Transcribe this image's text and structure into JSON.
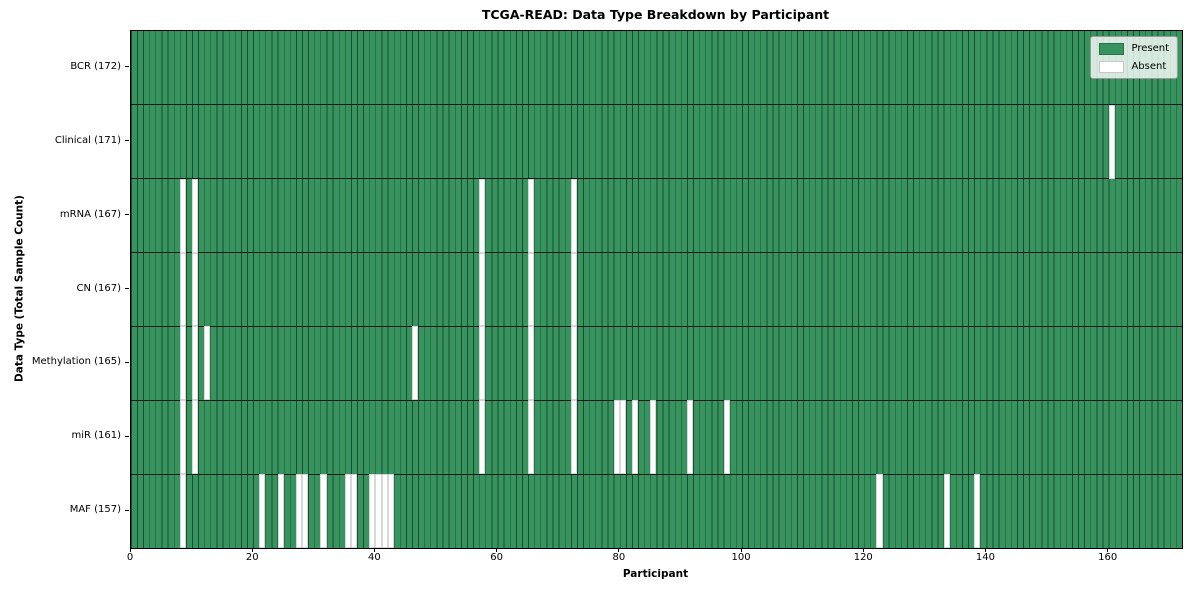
{
  "chart_data": {
    "type": "heatmap",
    "title": "TCGA-READ: Data Type Breakdown by Participant",
    "xlabel": "Participant",
    "ylabel": "Data Type (Total Sample Count)",
    "x_ticks": [
      0,
      20,
      40,
      60,
      80,
      100,
      120,
      140,
      160
    ],
    "x_max": 172,
    "participants_total": 172,
    "legend_position": "upper right",
    "colors": {
      "present": "#37945F",
      "absent": "#FFFFFF",
      "row_separator": "#1A1A1A"
    },
    "legend": [
      {
        "label": "Present",
        "color": "#37945F"
      },
      {
        "label": "Absent",
        "color": "#FFFFFF"
      }
    ],
    "rows": [
      {
        "label": "BCR (172)",
        "data_type": "BCR",
        "total": 172,
        "absent_participants": []
      },
      {
        "label": "Clinical (171)",
        "data_type": "Clinical",
        "total": 171,
        "absent_participants": [
          160
        ]
      },
      {
        "label": "mRNA (167)",
        "data_type": "mRNA",
        "total": 167,
        "absent_participants": [
          8,
          10,
          57,
          65,
          72
        ]
      },
      {
        "label": "CN (167)",
        "data_type": "CN",
        "total": 167,
        "absent_participants": [
          8,
          10,
          57,
          65,
          72
        ]
      },
      {
        "label": "Methylation (165)",
        "data_type": "Methylation",
        "total": 165,
        "absent_participants": [
          8,
          10,
          12,
          46,
          57,
          65,
          72
        ]
      },
      {
        "label": "miR (161)",
        "data_type": "miR",
        "total": 161,
        "absent_participants": [
          8,
          10,
          57,
          65,
          72,
          79,
          80,
          82,
          85,
          91,
          97
        ]
      },
      {
        "label": "MAF (157)",
        "data_type": "MAF",
        "total": 157,
        "absent_participants": [
          8,
          21,
          24,
          27,
          28,
          31,
          35,
          36,
          39,
          40,
          41,
          42,
          122,
          133,
          138
        ]
      }
    ]
  }
}
